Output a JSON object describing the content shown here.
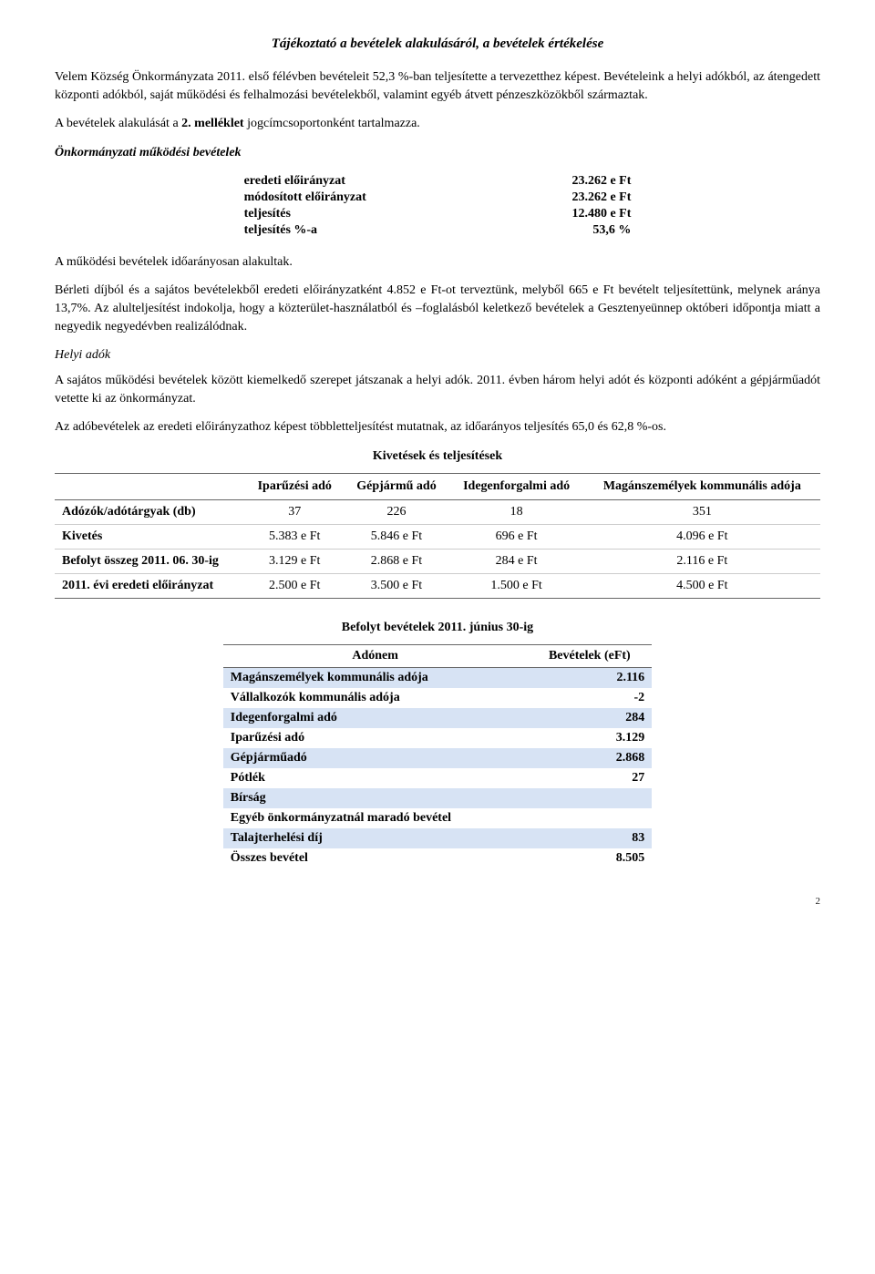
{
  "title": "Tájékoztató a bevételek alakulásáról, a bevételek értékelése",
  "para1": "Velem Község Önkormányzata 2011. első félévben bevételeit 52,3 %-ban teljesítette a tervezetthez képest. Bevételeink a helyi adókból, az átengedett központi adókból, saját működési és felhalmozási bevételekből, valamint egyéb átvett pénzeszközökből származtak.",
  "para2_a": "A bevételek alakulását a ",
  "para2_b": "2. melléklet",
  "para2_c": " jogcímcsoportonként tartalmazza.",
  "section1": "Önkormányzati működési bevételek",
  "smalltable": {
    "rows": [
      [
        "eredeti előirányzat",
        "23.262 e Ft"
      ],
      [
        "módosított előirányzat",
        "23.262 e Ft"
      ],
      [
        "teljesítés",
        "12.480 e Ft"
      ],
      [
        "teljesítés %-a",
        "53,6 %"
      ]
    ]
  },
  "para3": "A működési bevételek időarányosan alakultak.",
  "para4": "Bérleti díjból és a sajátos bevételekből eredeti előirányzatként 4.852 e Ft-ot terveztünk, melyből 665 e Ft bevételt teljesítettünk, melynek aránya 13,7%. Az alulteljesítést indokolja, hogy a közterület-használatból és –foglalásból keletkező bevételek a Gesztenyeünnep októberi időpontja miatt a negyedik negyedévben realizálódnak.",
  "helyi": "Helyi adók",
  "para5": "A sajátos működési bevételek között kiemelkedő szerepet játszanak a helyi adók. 2011. évben három helyi adót és központi adóként a gépjárműadót vetette ki az önkormányzat.",
  "para6": "Az adóbevételek az eredeti előirányzathoz képest többletteljesítést mutatnak, az időarányos teljesítés 65,0 és 62,8 %-os.",
  "kivetesekTitle": "Kivetések és teljesítések",
  "kivetesek": {
    "headers": [
      "",
      "Iparűzési adó",
      "Gépjármű adó",
      "Idegenforgalmi adó",
      "Magánszemélyek kommunális adója"
    ],
    "rows": [
      [
        "Adózók/adótárgyak (db)",
        "37",
        "226",
        "18",
        "351"
      ],
      [
        "Kivetés",
        "5.383 e Ft",
        "5.846 e Ft",
        "696 e Ft",
        "4.096 e Ft"
      ],
      [
        "Befolyt összeg 2011. 06. 30-ig",
        "3.129 e Ft",
        "2.868 e Ft",
        "284 e Ft",
        "2.116 e Ft"
      ],
      [
        "2011. évi eredeti előirányzat",
        "2.500 e Ft",
        "3.500 e Ft",
        "1.500 e Ft",
        "4.500 e Ft"
      ]
    ]
  },
  "befolytTitle": "Befolyt bevételek 2011. június 30-ig",
  "befolyt": {
    "headers": [
      "Adónem",
      "Bevételek (eFt)"
    ],
    "rows": [
      {
        "cells": [
          "Magánszemélyek kommunális adója",
          "2.116"
        ],
        "shade": true
      },
      {
        "cells": [
          "Vállalkozók kommunális adója",
          "-2"
        ],
        "shade": false
      },
      {
        "cells": [
          "Idegenforgalmi adó",
          "284"
        ],
        "shade": true
      },
      {
        "cells": [
          "Iparűzési adó",
          "3.129"
        ],
        "shade": false
      },
      {
        "cells": [
          "Gépjárműadó",
          "2.868"
        ],
        "shade": true
      },
      {
        "cells": [
          "Pótlék",
          "27"
        ],
        "shade": false
      },
      {
        "cells": [
          "Bírság",
          ""
        ],
        "shade": true
      },
      {
        "cells": [
          "Egyéb önkormányzatnál maradó bevétel",
          ""
        ],
        "shade": false
      },
      {
        "cells": [
          "Talajterhelési díj",
          "83"
        ],
        "shade": true
      },
      {
        "cells": [
          "Összes bevétel",
          "8.505"
        ],
        "shade": false
      }
    ]
  },
  "pagenum": "2"
}
